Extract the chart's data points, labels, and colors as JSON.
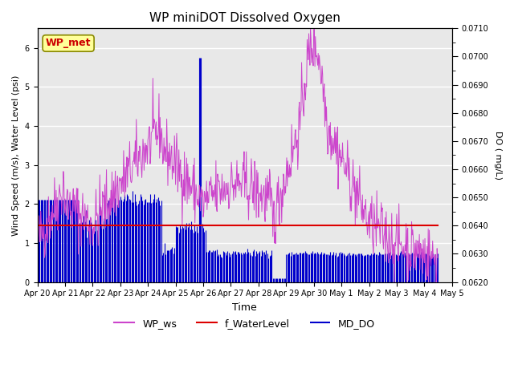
{
  "title": "WP miniDOT Dissolved Oxygen",
  "ylabel_left": "Wind Speed (m/s), Water Level (psi)",
  "ylabel_right": "DO ( mg/L)",
  "xlabel": "Time",
  "ylim_left": [
    0,
    6.5
  ],
  "ylim_right": [
    0.062,
    0.071
  ],
  "xlim": [
    0,
    14.5
  ],
  "legend_labels": [
    "WP_ws",
    "f_WaterLevel",
    "MD_DO"
  ],
  "legend_colors": [
    "#CC44CC",
    "#DD0000",
    "#0000CC"
  ],
  "annotation_text": "WP_met",
  "annotation_color": "#CC0000",
  "annotation_bg": "#FFFF99",
  "bg_color": "#E8E8E8",
  "grid_color": "#FFFFFF",
  "tick_labels": [
    "Apr 20",
    "Apr 21",
    "Apr 22",
    "Apr 23",
    "Apr 24",
    "Apr 25",
    "Apr 26",
    "Apr 27",
    "Apr 28",
    "Apr 29",
    "Apr 30",
    "May 1",
    "May 2",
    "May 3",
    "May 4",
    "May 5"
  ],
  "water_level_value": 1.44,
  "seed": 42
}
